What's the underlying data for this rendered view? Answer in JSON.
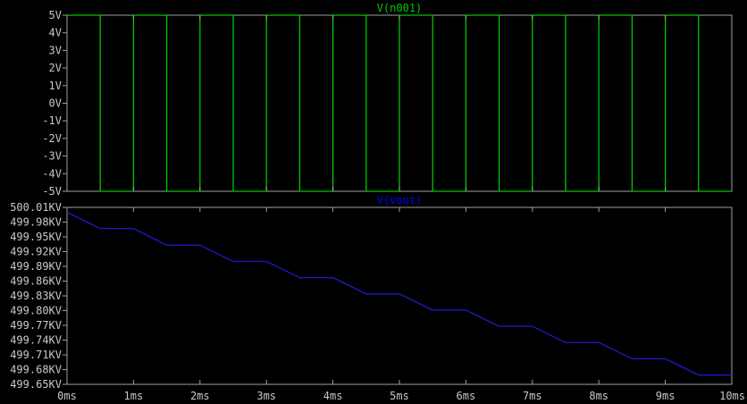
{
  "chart_data": [
    {
      "type": "line",
      "title": "V(n001)",
      "title_color": "#00c800",
      "series_color": "#00c800",
      "ylim": [
        -5,
        5
      ],
      "yticks": [
        "5V",
        "4V",
        "3V",
        "2V",
        "1V",
        "0V",
        "-1V",
        "-2V",
        "-3V",
        "-4V",
        "-5V"
      ],
      "xlim": [
        0,
        10
      ],
      "waveform": "square",
      "period_ms": 1,
      "high": 5,
      "low": -5,
      "start_level": 5,
      "first_fall_ms": 0.5,
      "points": [
        [
          0,
          5
        ],
        [
          0.5,
          5
        ],
        [
          0.5,
          -5
        ],
        [
          1,
          -5
        ],
        [
          1,
          5
        ],
        [
          1.5,
          5
        ],
        [
          1.5,
          -5
        ],
        [
          2,
          -5
        ],
        [
          2,
          5
        ],
        [
          2.5,
          5
        ],
        [
          2.5,
          -5
        ],
        [
          3,
          -5
        ],
        [
          3,
          5
        ],
        [
          3.5,
          5
        ],
        [
          3.5,
          -5
        ],
        [
          4,
          -5
        ],
        [
          4,
          5
        ],
        [
          4.5,
          5
        ],
        [
          4.5,
          -5
        ],
        [
          5,
          -5
        ],
        [
          5,
          5
        ],
        [
          5.5,
          5
        ],
        [
          5.5,
          -5
        ],
        [
          6,
          -5
        ],
        [
          6,
          5
        ],
        [
          6.5,
          5
        ],
        [
          6.5,
          -5
        ],
        [
          7,
          -5
        ],
        [
          7,
          5
        ],
        [
          7.5,
          5
        ],
        [
          7.5,
          -5
        ],
        [
          8,
          -5
        ],
        [
          8,
          5
        ],
        [
          8.5,
          5
        ],
        [
          8.5,
          -5
        ],
        [
          9,
          -5
        ],
        [
          9,
          5
        ],
        [
          9.5,
          5
        ],
        [
          9.5,
          -5
        ],
        [
          10,
          -5
        ]
      ],
      "grid": false
    },
    {
      "type": "line",
      "title": "V(vout)",
      "title_color": "#0000ff",
      "series_color": "#1c1ccc",
      "ylim": [
        499.65,
        500.01
      ],
      "yticks": [
        "500.01KV",
        "499.98KV",
        "499.95KV",
        "499.92KV",
        "499.89KV",
        "499.86KV",
        "499.83KV",
        "499.80KV",
        "499.77KV",
        "499.74KV",
        "499.71KV",
        "499.68KV",
        "499.65KV"
      ],
      "xlim": [
        0,
        10
      ],
      "points": [
        [
          0,
          500.0
        ],
        [
          0.5,
          499.967
        ],
        [
          1,
          499.967
        ],
        [
          1.5,
          499.933
        ],
        [
          2,
          499.933
        ],
        [
          2.5,
          499.9
        ],
        [
          3,
          499.9
        ],
        [
          3.5,
          499.867
        ],
        [
          4,
          499.867
        ],
        [
          4.5,
          499.834
        ],
        [
          5,
          499.834
        ],
        [
          5.5,
          499.801
        ],
        [
          6,
          499.801
        ],
        [
          6.5,
          499.768
        ],
        [
          7,
          499.768
        ],
        [
          7.5,
          499.735
        ],
        [
          8,
          499.735
        ],
        [
          8.5,
          499.702
        ],
        [
          9,
          499.702
        ],
        [
          9.5,
          499.669
        ],
        [
          10,
          499.669
        ]
      ],
      "grid": false
    }
  ],
  "x_axis": {
    "ticks": [
      "0ms",
      "1ms",
      "2ms",
      "3ms",
      "4ms",
      "5ms",
      "6ms",
      "7ms",
      "8ms",
      "9ms",
      "10ms"
    ]
  },
  "colors": {
    "background": "#000000",
    "frame": "#a0a0a0",
    "tick_text": "#c8c8c8"
  }
}
